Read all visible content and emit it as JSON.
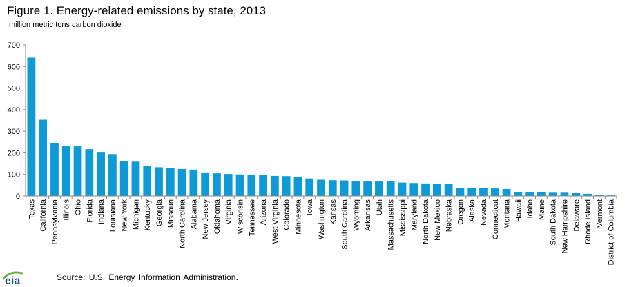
{
  "title": "Figure 1. Energy-related emissions by state, 2013",
  "subtitle": "million metric tons carbon dioxide",
  "source": "Source:  U.S. Energy Information  Administration.",
  "logo_text": "eia",
  "colors": {
    "bar": "#0d9ad6",
    "logo_text": "#1d4f8f",
    "logo_arc": "#6ab64a"
  },
  "chart_data": {
    "type": "bar",
    "title": "Figure 1. Energy-related emissions by state, 2013",
    "ylabel": "million metric tons carbon dioxide",
    "ylim": [
      0,
      700
    ],
    "yticks": [
      0,
      100,
      200,
      300,
      400,
      500,
      600,
      700
    ],
    "grid": false,
    "categories": [
      "Texas",
      "California",
      "Pennsylvania",
      "Illinois",
      "Ohio",
      "Florida",
      "Indiana",
      "Louisiana",
      "New York",
      "Michigan",
      "Kentucky",
      "Georgia",
      "Missouri",
      "North Carolina",
      "Alabama",
      "New Jersey",
      "Oklahoma",
      "Virginia",
      "Wisconsin",
      "Tennessee",
      "Arizona",
      "West Virginia",
      "Colorado",
      "Minnesota",
      "Iowa",
      "Washington",
      "Kansas",
      "South Carolina",
      "Wyoming",
      "Arkansas",
      "Utah",
      "Massachusetts",
      "Mississippi",
      "Maryland",
      "North Dakota",
      "New Mexico",
      "Nebraska",
      "Oregon",
      "Alaska",
      "Nevada",
      "Connecticut",
      "Montana",
      "Hawaii",
      "Idaho",
      "Maine",
      "South Dakota",
      "New Hampshire",
      "Delaware",
      "Rhode Island",
      "Vermont",
      "District of Columbia"
    ],
    "values": [
      641,
      353,
      246,
      230,
      230,
      217,
      201,
      194,
      160,
      159,
      138,
      133,
      130,
      125,
      122,
      106,
      105,
      102,
      100,
      98,
      96,
      93,
      92,
      89,
      81,
      75,
      73,
      72,
      70,
      67,
      67,
      67,
      62,
      60,
      58,
      55,
      55,
      38,
      37,
      36,
      35,
      32,
      19,
      17,
      16,
      15,
      15,
      13,
      10,
      6,
      3
    ]
  }
}
